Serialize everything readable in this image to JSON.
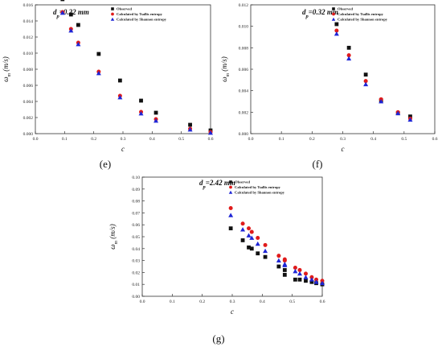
{
  "legend_labels": [
    "Observed",
    "Calculated by Tsallis entropy",
    "Calculated by Shannon entropy"
  ],
  "colors": {
    "observed": "#111111",
    "tsallis": "#e01b1b",
    "shannon": "#1f26d6",
    "axis": "#333333"
  },
  "chart_data": [
    {
      "type": "scatter",
      "panel_label": "(e)",
      "title": "d_p=0.22 mm",
      "xlabel": "c",
      "ylabel": "ω_m (m/s)",
      "xlim": [
        0.0,
        0.6
      ],
      "ylim": [
        0.0,
        0.016
      ],
      "xticks": [
        0.0,
        0.1,
        0.2,
        0.3,
        0.4,
        0.5,
        0.6
      ],
      "yticks": [
        0.0,
        0.002,
        0.004,
        0.006,
        0.008,
        0.01,
        0.012,
        0.014,
        0.016
      ],
      "xtick_labels": [
        "0.0",
        "0.1",
        "0.2",
        "0.3",
        "0.4",
        "0.5",
        "0.6"
      ],
      "ytick_labels": [
        "0.000",
        "0.002",
        "0.004",
        "0.006",
        "0.008",
        "0.010",
        "0.012",
        "0.014",
        "0.016"
      ],
      "legend_position": "top-right",
      "series": [
        {
          "name": "Observed",
          "marker": "square",
          "x": [
            0.093,
            0.122,
            0.147,
            0.217,
            0.29,
            0.362,
            0.413,
            0.53,
            0.6
          ],
          "y": [
            0.0167,
            0.0148,
            0.0135,
            0.0099,
            0.0066,
            0.0041,
            0.0026,
            0.0011,
            0.0004
          ]
        },
        {
          "name": "Calculated by Tsallis entropy",
          "marker": "circle",
          "x": [
            0.093,
            0.122,
            0.147,
            0.217,
            0.29,
            0.362,
            0.413,
            0.53,
            0.6
          ],
          "y": [
            0.0151,
            0.013,
            0.0113,
            0.0077,
            0.0047,
            0.0027,
            0.0018,
            0.0006,
            0.0002
          ]
        },
        {
          "name": "Calculated by Shannon entropy",
          "marker": "triangle",
          "x": [
            0.093,
            0.122,
            0.147,
            0.217,
            0.29,
            0.362,
            0.413,
            0.53,
            0.6
          ],
          "y": [
            0.015,
            0.0128,
            0.0111,
            0.0075,
            0.0045,
            0.0025,
            0.0016,
            0.0005,
            0.0001
          ]
        }
      ]
    },
    {
      "type": "scatter",
      "panel_label": "(f)",
      "title": "d_p=0.32 mm",
      "xlabel": "c",
      "ylabel": "ω_m (m/s)",
      "xlim": [
        0.0,
        0.6
      ],
      "ylim": [
        0.0,
        0.012
      ],
      "xticks": [
        0.0,
        0.1,
        0.2,
        0.3,
        0.4,
        0.5,
        0.6
      ],
      "yticks": [
        0.0,
        0.002,
        0.004,
        0.006,
        0.008,
        0.01,
        0.012
      ],
      "xtick_labels": [
        "0.0",
        "0.1",
        "0.2",
        "0.3",
        "0.4",
        "0.5",
        "0.6"
      ],
      "ytick_labels": [
        "0.000",
        "0.002",
        "0.004",
        "0.006",
        "0.008",
        "0.010",
        "0.012"
      ],
      "legend_position": "top-right",
      "series": [
        {
          "name": "Observed",
          "marker": "square",
          "x": [
            0.28,
            0.32,
            0.375,
            0.425,
            0.48,
            0.52
          ],
          "y": [
            0.0102,
            0.008,
            0.0055,
            0.0031,
            0.0019,
            0.0016
          ]
        },
        {
          "name": "Calculated by Tsallis entropy",
          "marker": "circle",
          "x": [
            0.28,
            0.32,
            0.375,
            0.425,
            0.48,
            0.52
          ],
          "y": [
            0.0096,
            0.0073,
            0.0049,
            0.0032,
            0.002,
            0.0014
          ]
        },
        {
          "name": "Calculated by Shannon entropy",
          "marker": "triangle",
          "x": [
            0.28,
            0.32,
            0.375,
            0.425,
            0.48,
            0.52
          ],
          "y": [
            0.0093,
            0.007,
            0.0046,
            0.003,
            0.0019,
            0.0013
          ]
        }
      ]
    },
    {
      "type": "scatter",
      "panel_label": "(g)",
      "title": "d_p=2.42 mm",
      "xlabel": "c",
      "ylabel": "ω_m (m/s)",
      "xlim": [
        0.0,
        0.6
      ],
      "ylim": [
        0.0,
        0.1
      ],
      "xticks": [
        0.0,
        0.1,
        0.2,
        0.3,
        0.4,
        0.5,
        0.6
      ],
      "yticks": [
        0.0,
        0.01,
        0.02,
        0.03,
        0.04,
        0.05,
        0.06,
        0.07,
        0.08,
        0.09,
        0.1
      ],
      "xtick_labels": [
        "0.0",
        "0.1",
        "0.2",
        "0.3",
        "0.4",
        "0.5",
        "0.6"
      ],
      "ytick_labels": [
        "0.00",
        "0.01",
        "0.02",
        "0.03",
        "0.04",
        "0.05",
        "0.06",
        "0.07",
        "0.08",
        "0.09",
        "0.10"
      ],
      "legend_position": "top-center",
      "series": [
        {
          "name": "Observed",
          "marker": "square",
          "x": [
            0.295,
            0.335,
            0.355,
            0.365,
            0.385,
            0.41,
            0.455,
            0.475,
            0.475,
            0.51,
            0.525,
            0.545,
            0.565,
            0.58,
            0.6
          ],
          "y": [
            0.057,
            0.047,
            0.041,
            0.04,
            0.036,
            0.033,
            0.025,
            0.022,
            0.018,
            0.014,
            0.014,
            0.013,
            0.012,
            0.011,
            0.01
          ]
        },
        {
          "name": "Calculated by Tsallis entropy",
          "marker": "circle",
          "x": [
            0.295,
            0.335,
            0.355,
            0.365,
            0.385,
            0.41,
            0.455,
            0.475,
            0.475,
            0.51,
            0.525,
            0.545,
            0.565,
            0.58,
            0.6
          ],
          "y": [
            0.074,
            0.061,
            0.057,
            0.054,
            0.049,
            0.043,
            0.034,
            0.031,
            0.03,
            0.024,
            0.022,
            0.019,
            0.016,
            0.014,
            0.013
          ]
        },
        {
          "name": "Calculated by Shannon entropy",
          "marker": "triangle",
          "x": [
            0.295,
            0.335,
            0.355,
            0.365,
            0.385,
            0.41,
            0.455,
            0.475,
            0.475,
            0.51,
            0.525,
            0.545,
            0.565,
            0.58,
            0.6
          ],
          "y": [
            0.068,
            0.056,
            0.051,
            0.049,
            0.044,
            0.038,
            0.03,
            0.027,
            0.026,
            0.021,
            0.019,
            0.016,
            0.014,
            0.012,
            0.011
          ]
        }
      ]
    }
  ]
}
